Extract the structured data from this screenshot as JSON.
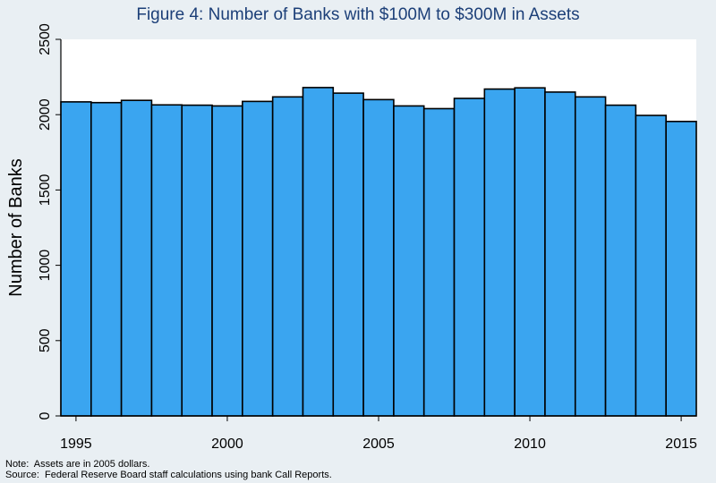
{
  "chart_data": {
    "type": "bar",
    "title": "Figure 4:  Number of Banks with $100M to $300M in Assets",
    "xlabel": "",
    "ylabel": "Number of Banks",
    "x": [
      1995,
      1996,
      1997,
      1998,
      1999,
      2000,
      2001,
      2002,
      2003,
      2004,
      2005,
      2006,
      2007,
      2008,
      2009,
      2010,
      2011,
      2012,
      2013,
      2014,
      2015
    ],
    "values": [
      2085,
      2080,
      2095,
      2065,
      2063,
      2058,
      2088,
      2118,
      2180,
      2143,
      2100,
      2058,
      2040,
      2108,
      2170,
      2178,
      2150,
      2118,
      2063,
      1995,
      1955
    ],
    "ylim": [
      0,
      2500
    ],
    "xlim": [
      1994.5,
      2015.5
    ],
    "yticks": [
      "0",
      "500",
      "1000",
      "1500",
      "2000",
      "2500"
    ],
    "xticks": [
      "1995",
      "2000",
      "2005",
      "2010",
      "2015"
    ],
    "grid": false,
    "legend": "none",
    "bar_color": "#3aa5f0",
    "bar_edge_color": "#000000",
    "background_color": "#e9eff3"
  },
  "notes": {
    "line1": "Note:  Assets are in 2005 dollars.",
    "line2": "Source:  Federal Reserve Board staff calculations using bank Call Reports."
  }
}
